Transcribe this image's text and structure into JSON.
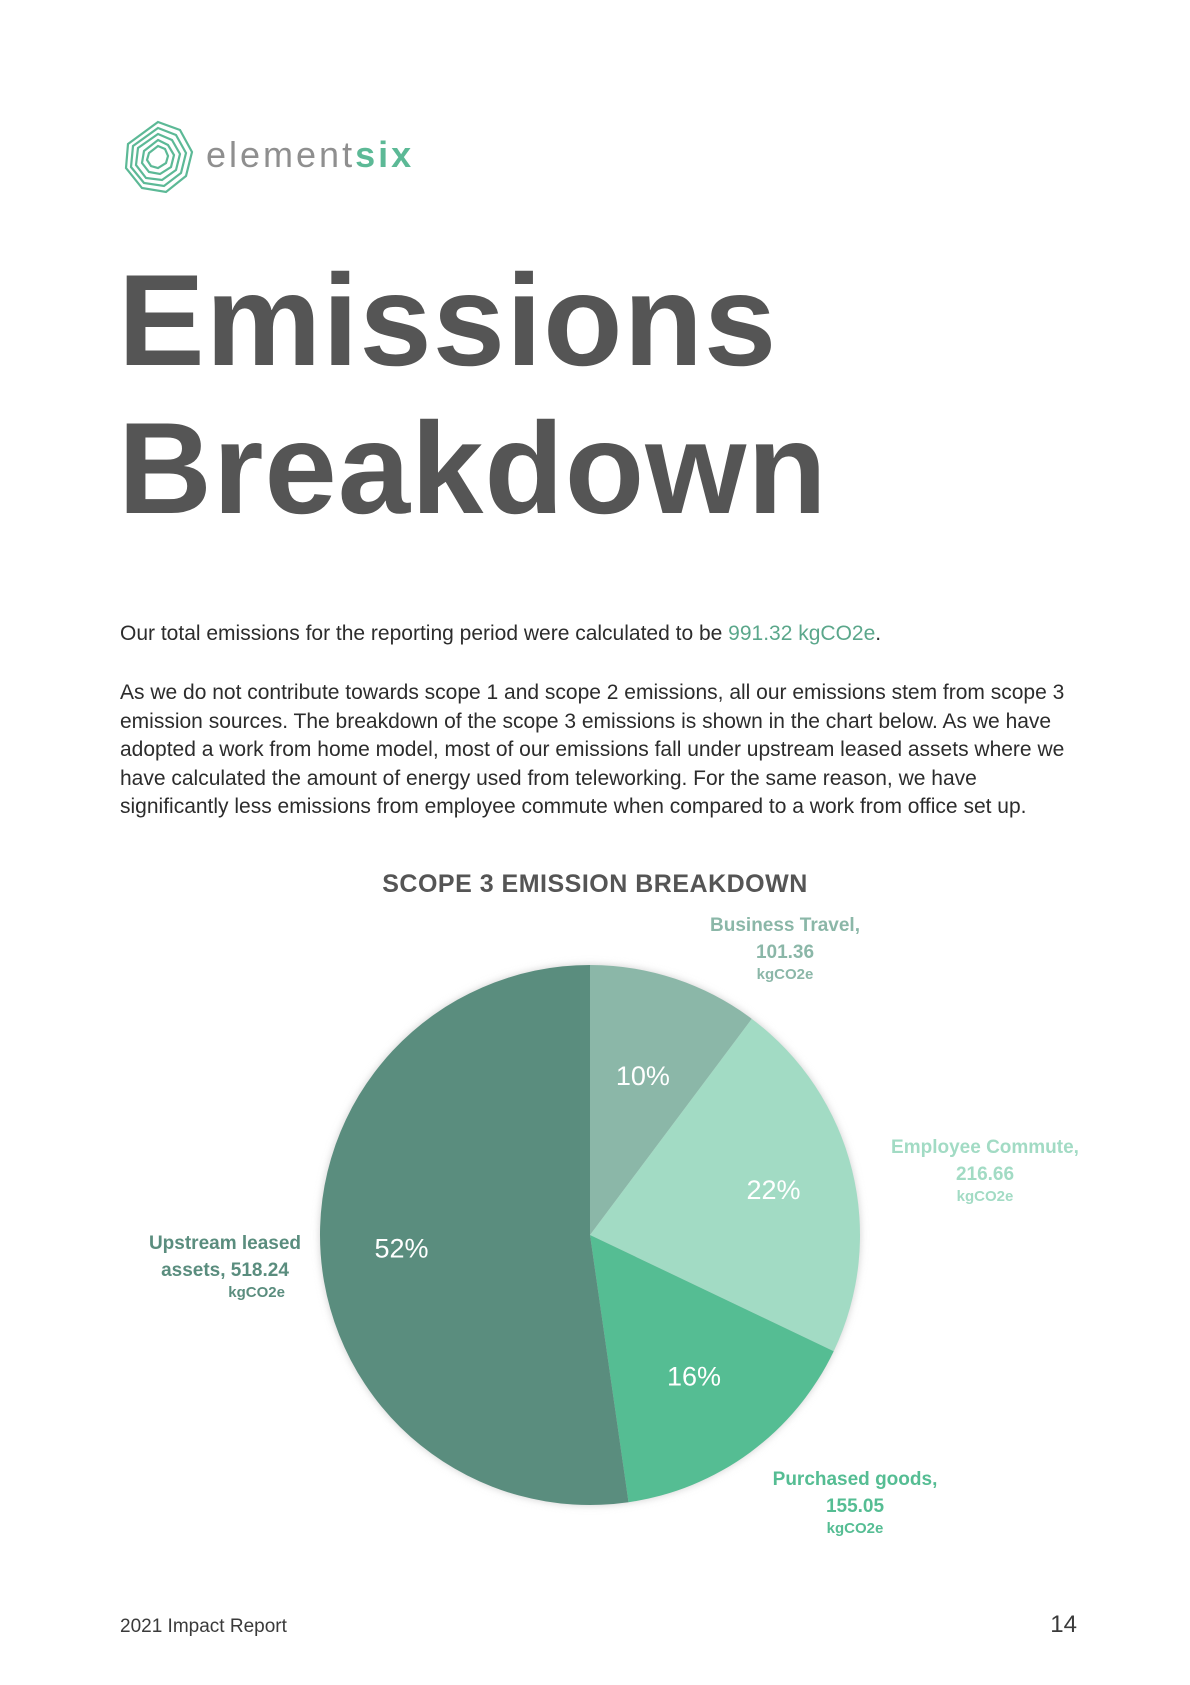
{
  "brand": {
    "name_part1": "element",
    "name_part2": "six",
    "colors": {
      "gray": "#8f8f8f",
      "green": "#5cb996"
    }
  },
  "page": {
    "title_line1": "Emissions",
    "title_line2": "Breakdown",
    "intro_before": "Our total emissions for the reporting period were calculated to be ",
    "intro_highlight": "991.32 kgCO2e",
    "intro_after": ".",
    "body": "As we do not contribute towards scope 1 and scope 2 emissions, all our emissions stem from scope 3 emission sources. The breakdown of the scope 3 emissions is shown in the chart below. As we have adopted a work from home model, most of our emissions fall under upstream leased assets where we have calculated the amount of energy used from teleworking. For the same reason, we have significantly less emissions from employee commute when compared to a work from office set up."
  },
  "chart_data": {
    "type": "pie",
    "title": "SCOPE 3 EMISSION BREAKDOWN",
    "unit": "kgCO2e",
    "slices": [
      {
        "name": "Business Travel,",
        "value": 101.36,
        "value_label": "101.36",
        "percent_label": "10%",
        "color": "#8bb7a8",
        "label_color": "#8bb7a8"
      },
      {
        "name": "Employee Commute,",
        "value": 216.66,
        "value_label": "216.66",
        "percent_label": "22%",
        "color": "#a2dbc4",
        "label_color": "#a2dbc4"
      },
      {
        "name": "Purchased goods,",
        "value": 155.05,
        "value_label": "155.05",
        "percent_label": "16%",
        "color": "#55bd93",
        "label_color": "#55bd93"
      },
      {
        "name": "Upstream leased",
        "name_line2": "assets, ",
        "value": 518.24,
        "value_label": "518.24",
        "percent_label": "52%",
        "color": "#5a8d7e",
        "label_color": "#5a8d7e"
      }
    ]
  },
  "footer": {
    "left": "2021 Impact Report",
    "page_number": "14"
  }
}
